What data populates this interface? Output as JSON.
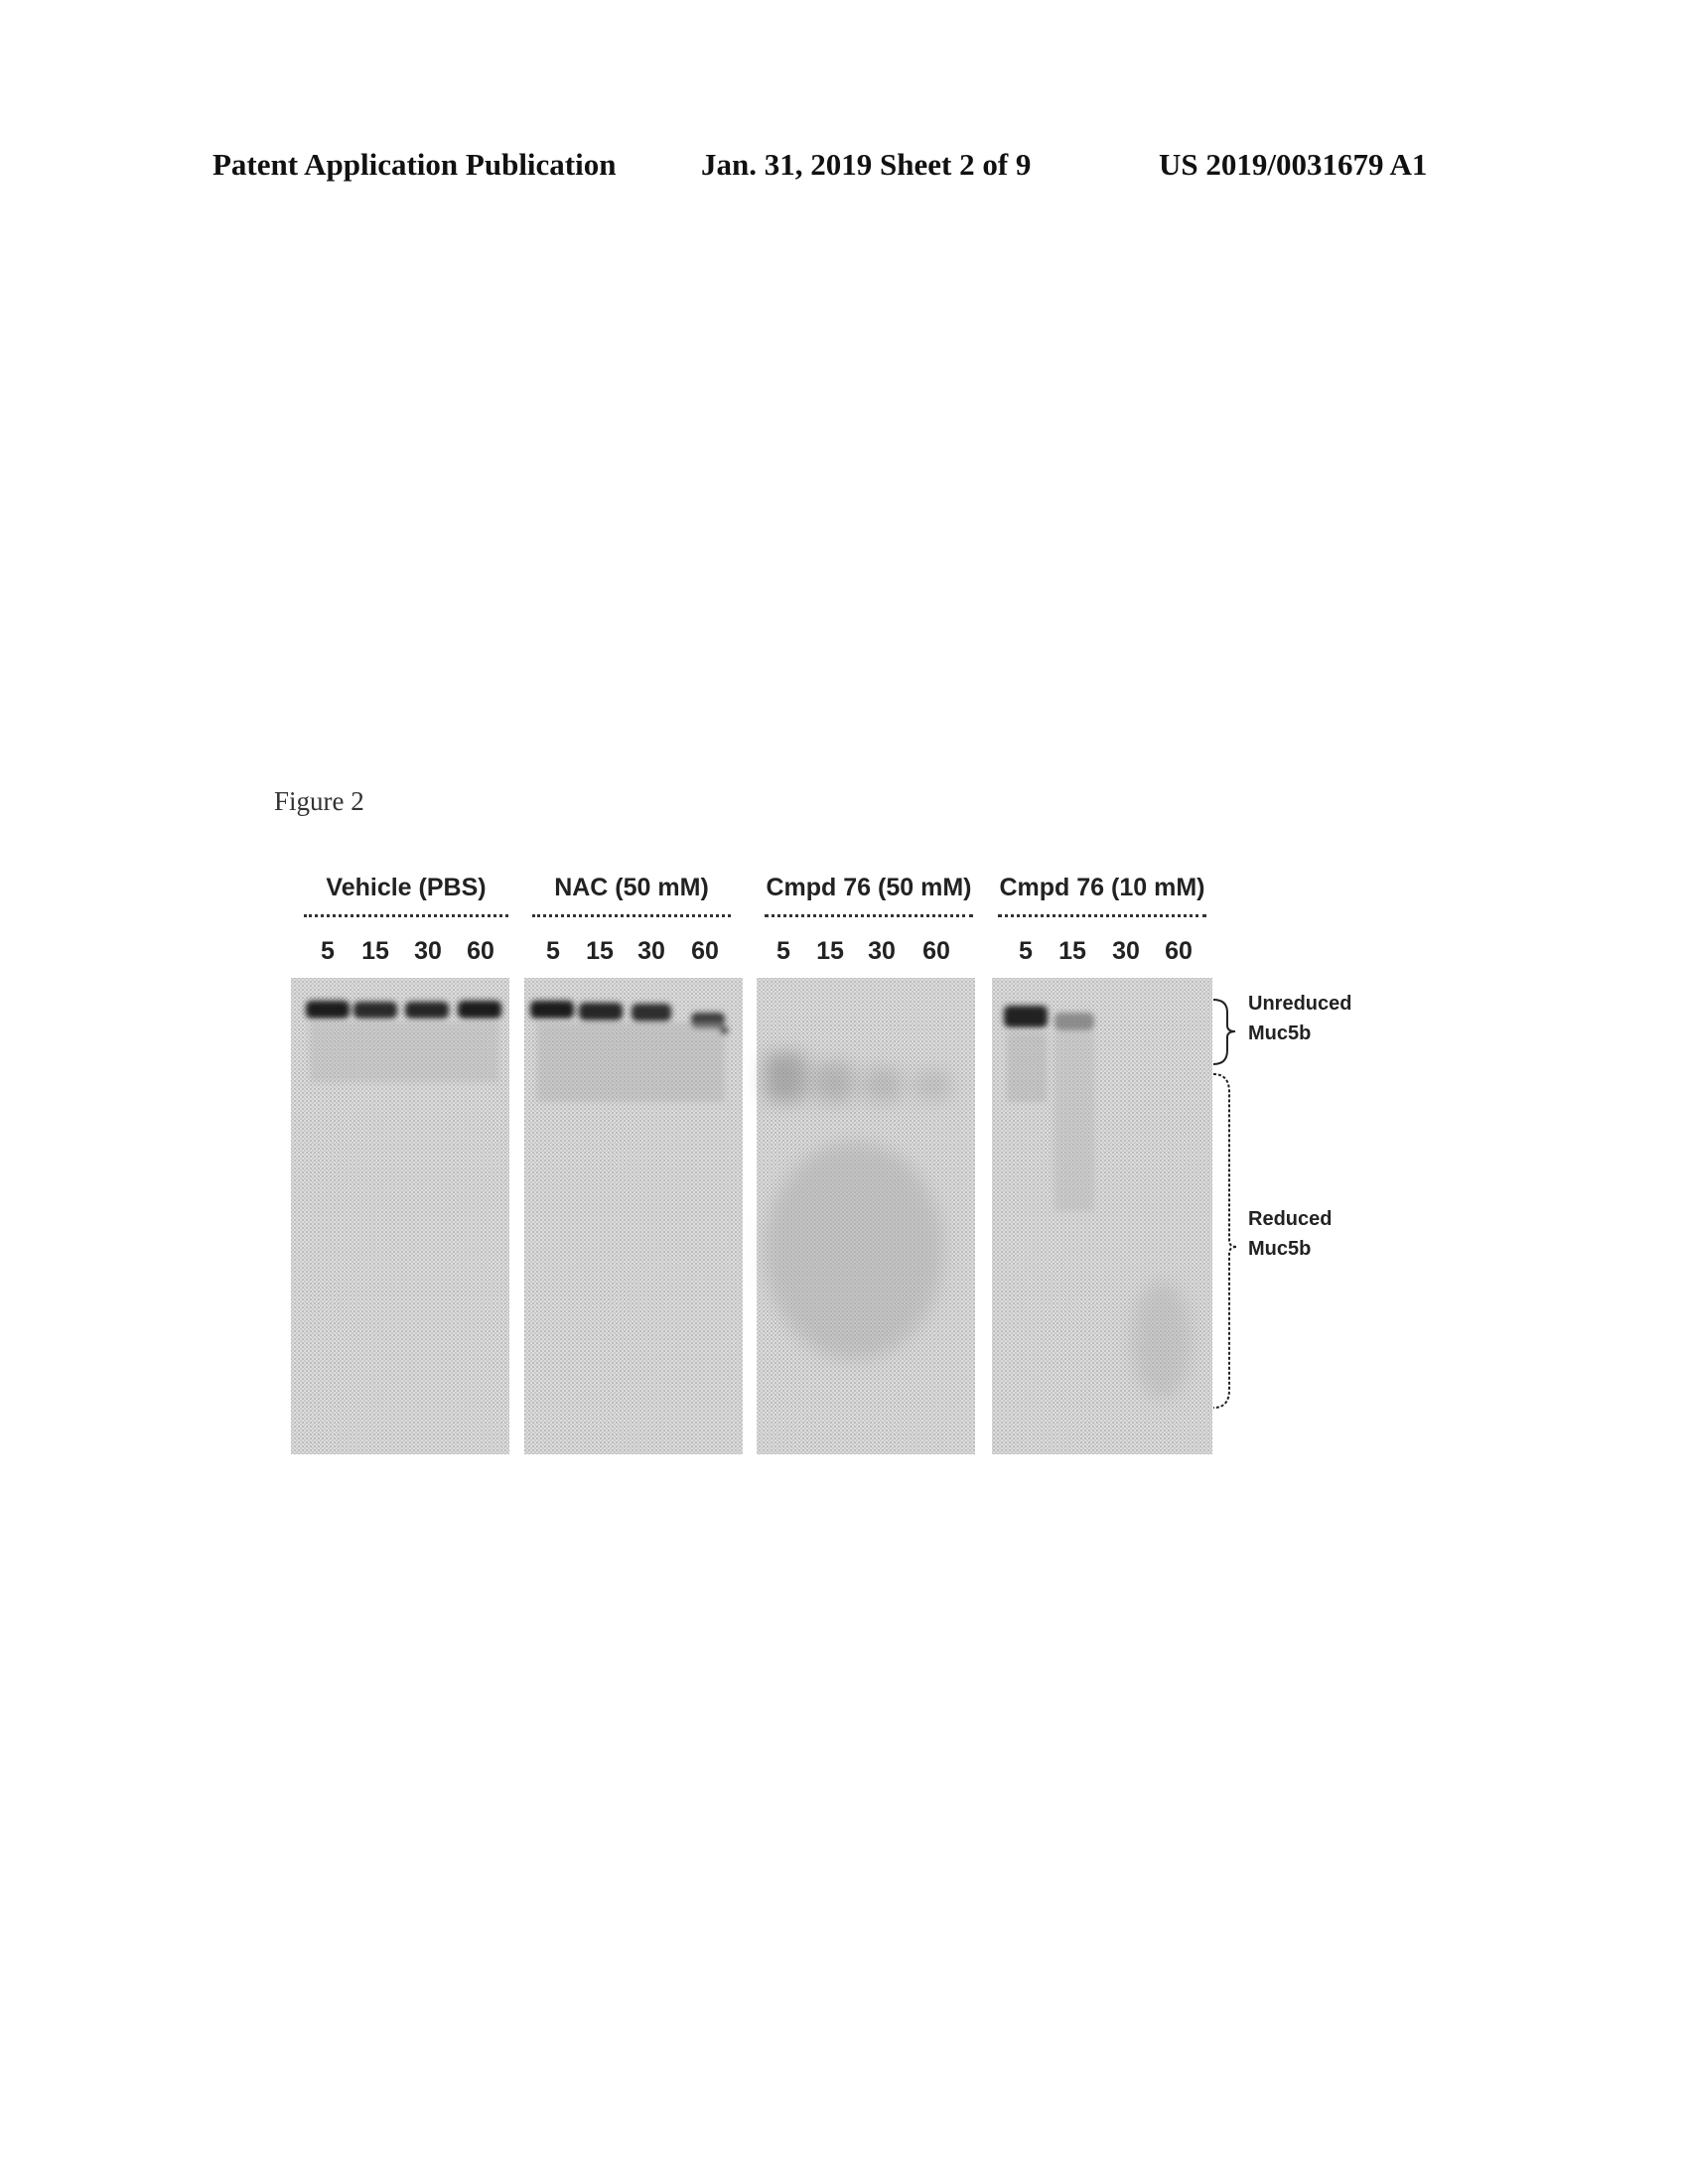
{
  "header": {
    "left": "Patent Application Publication",
    "middle": "Jan. 31, 2019  Sheet 2 of 9",
    "right": "US 2019/0031679 A1"
  },
  "figure": {
    "label": "Figure 2",
    "groups": [
      {
        "label": "Vehicle (PBS)",
        "lanes": [
          "5",
          "15",
          "30",
          "60"
        ]
      },
      {
        "label": "NAC (50 mM)",
        "lanes": [
          "5",
          "15",
          "30",
          "60"
        ]
      },
      {
        "label": "Cmpd 76 (50 mM)",
        "lanes": [
          "5",
          "15",
          "30",
          "60"
        ]
      },
      {
        "label": "Cmpd 76 (10 mM)",
        "lanes": [
          "5",
          "15",
          "30",
          "60"
        ]
      }
    ],
    "annotations": {
      "unreduced": [
        "Unreduced",
        "Muc5b"
      ],
      "reduced": [
        "Reduced",
        "Muc5b"
      ]
    }
  }
}
